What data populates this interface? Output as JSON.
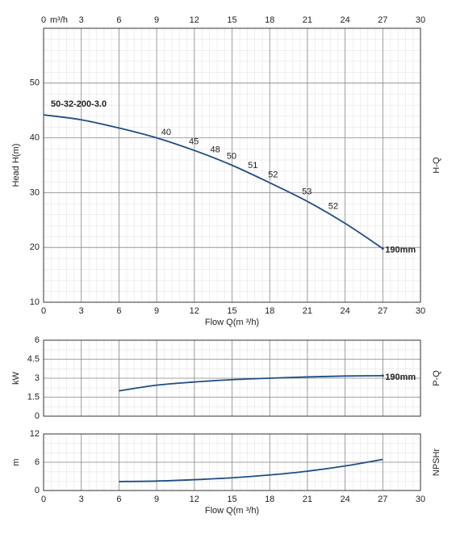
{
  "chart_data": [
    {
      "type": "line",
      "y_label": "Head H(m)",
      "side_label": "H-Q",
      "x_label": "Flow Q(m ³/h)",
      "top_unit": "m³/h",
      "xlim": [
        0,
        30
      ],
      "xticks": [
        0,
        3,
        6,
        9,
        12,
        15,
        18,
        21,
        24,
        27,
        30
      ],
      "ylim": [
        10,
        60
      ],
      "yticks": [
        10,
        20,
        30,
        40,
        50
      ],
      "grid": true,
      "minor_x": 5,
      "minor_y": 5,
      "top_axis": true,
      "x_tick_labels": true,
      "series": [
        {
          "name": "50-32-200-3.0",
          "color": "#1f4e86",
          "x": [
            0,
            3,
            6,
            9,
            12,
            15,
            18,
            21,
            24,
            27
          ],
          "values": [
            44.2,
            43.3,
            41.8,
            40,
            37.7,
            35,
            31.8,
            28.4,
            24.4,
            19.8
          ]
        }
      ],
      "end_label": "190mm",
      "efficiency": {
        "x": [
          9.3,
          11.5,
          13.2,
          14.5,
          16.2,
          17.8,
          20.5,
          22.6
        ],
        "values": [
          40,
          45,
          48,
          50,
          51,
          52,
          53,
          52
        ]
      }
    },
    {
      "type": "line",
      "y_label": "kW",
      "side_label": "P-Q",
      "xlim": [
        0,
        30
      ],
      "xticks": [
        0,
        3,
        6,
        9,
        12,
        15,
        18,
        21,
        24,
        27,
        30
      ],
      "ylim": [
        0,
        6
      ],
      "yticks": [
        0,
        1.5,
        3,
        4.5,
        6
      ],
      "grid": true,
      "minor_x": 5,
      "minor_y": 2,
      "top_axis": false,
      "x_tick_labels": false,
      "series": [
        {
          "color": "#1f4e86",
          "x": [
            6,
            9,
            12,
            15,
            18,
            21,
            24,
            27
          ],
          "values": [
            2.0,
            2.45,
            2.7,
            2.88,
            3.0,
            3.1,
            3.17,
            3.2
          ]
        }
      ],
      "end_label": "190mm"
    },
    {
      "type": "line",
      "y_label": "m",
      "side_label": "NPSHr",
      "x_label": "Flow Q(m ³/h)",
      "xlim": [
        0,
        30
      ],
      "xticks": [
        0,
        3,
        6,
        9,
        12,
        15,
        18,
        21,
        24,
        27,
        30
      ],
      "ylim": [
        0,
        12
      ],
      "yticks": [
        0,
        6,
        12
      ],
      "grid": true,
      "minor_x": 5,
      "minor_y": 3,
      "top_axis": false,
      "x_tick_labels": true,
      "series": [
        {
          "color": "#1f4e86",
          "x": [
            6,
            9,
            12,
            15,
            18,
            21,
            24,
            27
          ],
          "values": [
            1.9,
            2.0,
            2.3,
            2.7,
            3.3,
            4.1,
            5.2,
            6.6
          ]
        }
      ]
    }
  ]
}
